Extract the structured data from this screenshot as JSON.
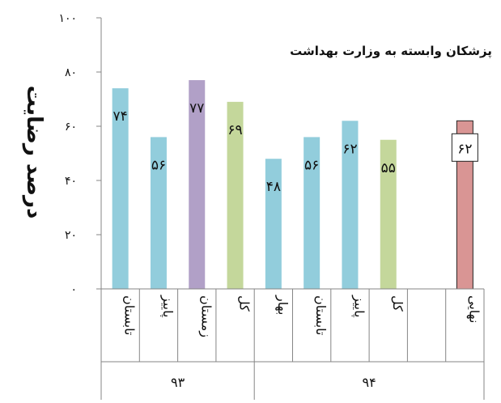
{
  "chart_data": {
    "type": "bar",
    "title": "پزشکان وابسته به وزارت بهداشت",
    "ylabel": "درصد رضایت",
    "ylim": [
      0,
      100
    ],
    "yticks": [
      0,
      20,
      40,
      60,
      80,
      100
    ],
    "ytick_labels": [
      "۰",
      "۲۰",
      "۴۰",
      "۶۰",
      "۸۰",
      "۱۰۰"
    ],
    "categories": [
      "تابستان",
      "پاییز",
      "زمستان",
      "کل",
      "بهار",
      "تابستان",
      "پاییز",
      "کل",
      "",
      "نهایی"
    ],
    "values": [
      74,
      56,
      77,
      69,
      48,
      56,
      62,
      55,
      null,
      62
    ],
    "value_labels": [
      "۷۴",
      "۵۶",
      "۷۷",
      "۶۹",
      "۴۸",
      "۵۶",
      "۶۲",
      "۵۵",
      "",
      "۶۲"
    ],
    "colors": [
      "#92cddc",
      "#92cddc",
      "#b1a0c7",
      "#c4d79b",
      "#92cddc",
      "#92cddc",
      "#92cddc",
      "#c4d79b",
      "",
      "#d99594"
    ],
    "groups": [
      {
        "label": "۹۳",
        "start": 0,
        "end": 3
      },
      {
        "label": "۹۴",
        "start": 4,
        "end": 9
      }
    ],
    "grid": false,
    "legend": "none"
  }
}
